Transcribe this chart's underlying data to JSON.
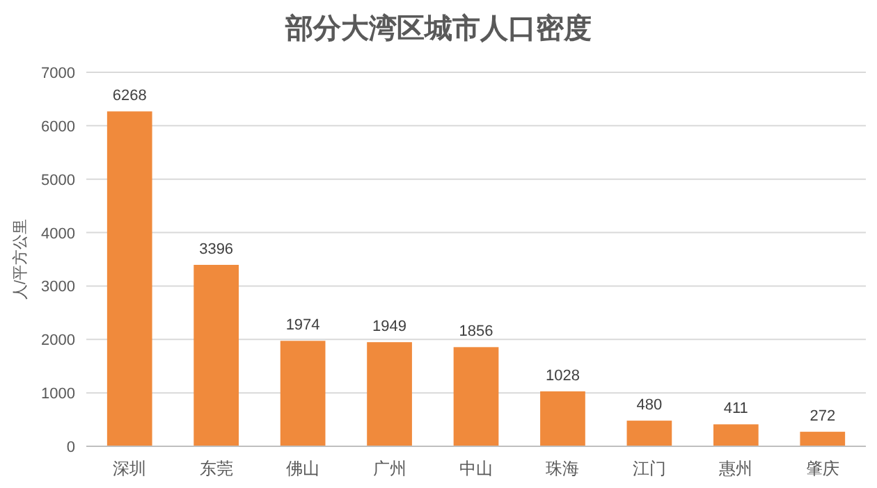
{
  "chart_data": {
    "type": "bar",
    "title": "部分大湾区城市人口密度",
    "ylabel": "人/平方公里",
    "categories": [
      "深圳",
      "东莞",
      "佛山",
      "广州",
      "中山",
      "珠海",
      "江门",
      "惠州",
      "肇庆"
    ],
    "values": [
      6268,
      3396,
      1974,
      1949,
      1856,
      1028,
      480,
      411,
      272
    ],
    "color": "#f08a3c",
    "ylim": [
      0,
      7000
    ],
    "yticks": [
      0,
      1000,
      2000,
      3000,
      4000,
      5000,
      6000,
      7000
    ],
    "grid": "y",
    "data_labels": true
  }
}
